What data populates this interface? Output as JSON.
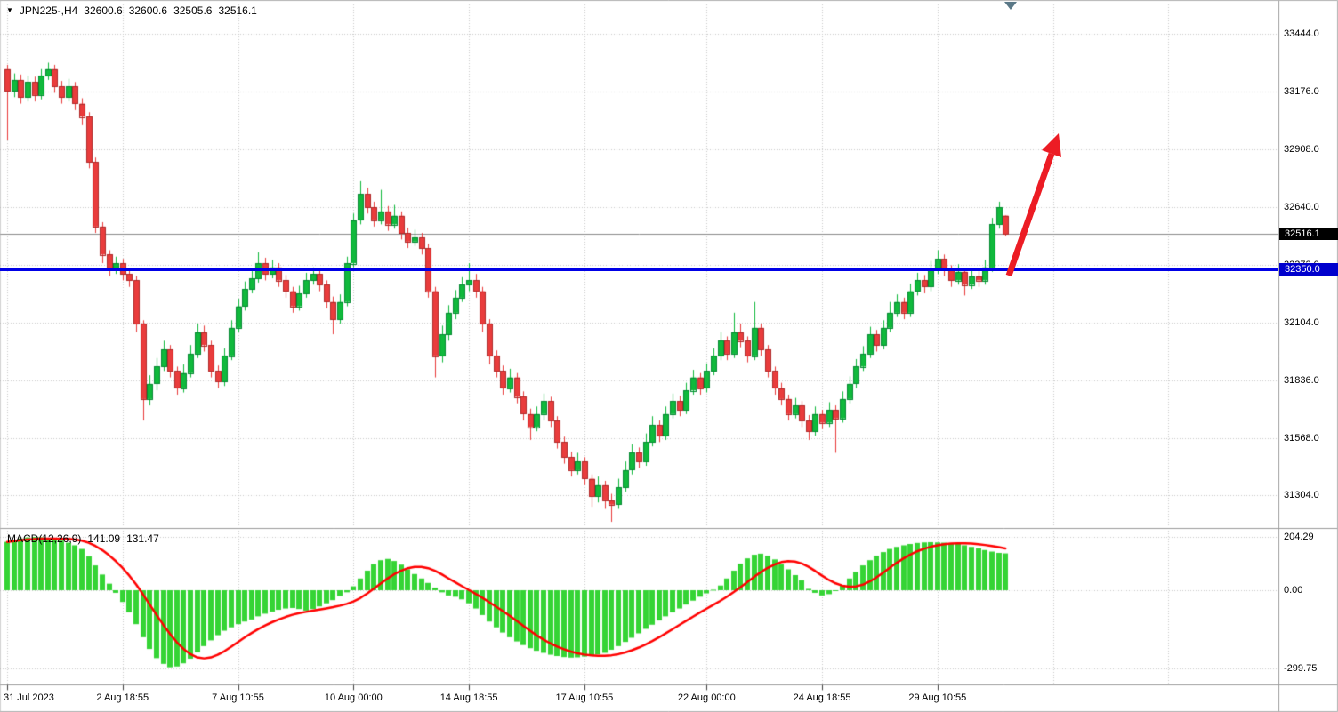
{
  "header": {
    "marker_icon": "▼",
    "title": "JPN225-,H4",
    "ohlc": {
      "open": "32600.6",
      "high": "32600.6",
      "low": "32505.6",
      "close": "32516.1"
    }
  },
  "indicator": {
    "label": "MACD(12,26,9)",
    "macd_value": "141.09",
    "signal_value": "131.47"
  },
  "price_tags": {
    "current": {
      "value": "32516.1",
      "price": 32516.1
    },
    "support": {
      "value": "32350.0",
      "price": 32350.0
    }
  },
  "annotations": {
    "support_line": {
      "price": 32350.0
    },
    "trend_arrow": {
      "direction": "up-right"
    }
  },
  "colors": {
    "background": "#FFFFFF",
    "candle_up": "#10B93C",
    "candle_up_border": "#068A33",
    "candle_down": "#E93C3C",
    "candle_down_border": "#B02A2A",
    "macd_histogram": "#35D435",
    "macd_signal": "#FF0000",
    "support_line": "#0000E6",
    "support_tag_bg": "#0000CD",
    "current_tag_bg": "#000000",
    "arrow": "#EC1C24",
    "grid": "#C9C9C9",
    "separator": "#9C9C9C",
    "current_price_line": "#8A8A8A",
    "text": "#000000"
  },
  "chart_data": {
    "type": "candlestick",
    "symbol": "JPN225-",
    "timeframe": "H4",
    "title": "JPN225-,H4 32600.6 32600.6 32505.6 32516.1",
    "grid": true,
    "last_ohlc": {
      "open": 32600.6,
      "high": 32600.6,
      "low": 32505.6,
      "close": 32516.1
    },
    "y_ticks": [
      {
        "label": "33444.0",
        "price": 33444.0
      },
      {
        "label": "33176.0",
        "price": 33176.0
      },
      {
        "label": "32908.0",
        "price": 32908.0
      },
      {
        "label": "32640.0",
        "price": 32640.0
      },
      {
        "label": "32372.0",
        "price": 32372.0
      },
      {
        "label": "32104.0",
        "price": 32104.0
      },
      {
        "label": "31836.0",
        "price": 31836.0
      },
      {
        "label": "31568.0",
        "price": 31568.0
      },
      {
        "label": "31304.0",
        "price": 31304.0
      }
    ],
    "x_ticks": [
      {
        "label": "31 Jul 2023",
        "bar": 0
      },
      {
        "label": "2 Aug 18:55",
        "bar": 17
      },
      {
        "label": "7 Aug 10:55",
        "bar": 34
      },
      {
        "label": "10 Aug 00:00",
        "bar": 51
      },
      {
        "label": "14 Aug 18:55",
        "bar": 68
      },
      {
        "label": "17 Aug 10:55",
        "bar": 85
      },
      {
        "label": "22 Aug 00:00",
        "bar": 103
      },
      {
        "label": "24 Aug 18:55",
        "bar": 120
      },
      {
        "label": "29 Aug 10:55",
        "bar": 137
      }
    ],
    "candles": [
      [
        33280,
        33300,
        32950,
        33180
      ],
      [
        33180,
        33260,
        33150,
        33230
      ],
      [
        33230,
        33255,
        33120,
        33150
      ],
      [
        33150,
        33250,
        33130,
        33220
      ],
      [
        33220,
        33245,
        33130,
        33160
      ],
      [
        33160,
        33280,
        33140,
        33250
      ],
      [
        33250,
        33310,
        33230,
        33280
      ],
      [
        33280,
        33300,
        33170,
        33200
      ],
      [
        33200,
        33225,
        33120,
        33150
      ],
      [
        33150,
        33235,
        33130,
        33200
      ],
      [
        33200,
        33220,
        33090,
        33120
      ],
      [
        33120,
        33145,
        33020,
        33060
      ],
      [
        33060,
        33080,
        32820,
        32850
      ],
      [
        32850,
        32870,
        32520,
        32550
      ],
      [
        32550,
        32570,
        32380,
        32420
      ],
      [
        32420,
        32440,
        32320,
        32350
      ],
      [
        32350,
        32410,
        32330,
        32380
      ],
      [
        32380,
        32400,
        32300,
        32330
      ],
      [
        32330,
        32355,
        32270,
        32300
      ],
      [
        32300,
        32320,
        32060,
        32100
      ],
      [
        32100,
        32115,
        31650,
        31750
      ],
      [
        31750,
        31860,
        31720,
        31820
      ],
      [
        31820,
        31940,
        31790,
        31900
      ],
      [
        31900,
        32020,
        31880,
        31980
      ],
      [
        31980,
        32000,
        31850,
        31880
      ],
      [
        31880,
        31900,
        31770,
        31800
      ],
      [
        31800,
        31910,
        31780,
        31870
      ],
      [
        31870,
        32000,
        31850,
        31960
      ],
      [
        31960,
        32100,
        31940,
        32060
      ],
      [
        32060,
        32090,
        31970,
        32000
      ],
      [
        32000,
        32020,
        31850,
        31880
      ],
      [
        31880,
        31905,
        31800,
        31830
      ],
      [
        31830,
        31985,
        31810,
        31950
      ],
      [
        31950,
        32115,
        31930,
        32080
      ],
      [
        32080,
        32215,
        32060,
        32180
      ],
      [
        32180,
        32295,
        32160,
        32260
      ],
      [
        32260,
        32345,
        32240,
        32310
      ],
      [
        32310,
        32430,
        32290,
        32380
      ],
      [
        32380,
        32405,
        32300,
        32330
      ],
      [
        32330,
        32395,
        32310,
        32360
      ],
      [
        32360,
        32380,
        32270,
        32300
      ],
      [
        32300,
        32325,
        32220,
        32250
      ],
      [
        32250,
        32270,
        32150,
        32180
      ],
      [
        32180,
        32275,
        32160,
        32240
      ],
      [
        32240,
        32335,
        32220,
        32300
      ],
      [
        32300,
        32360,
        32280,
        32330
      ],
      [
        32330,
        32350,
        32250,
        32280
      ],
      [
        32280,
        32300,
        32170,
        32200
      ],
      [
        32200,
        32225,
        32050,
        32120
      ],
      [
        32120,
        32235,
        32100,
        32200
      ],
      [
        32200,
        32410,
        32180,
        32380
      ],
      [
        32380,
        32610,
        32360,
        32580
      ],
      [
        32580,
        32760,
        32560,
        32700
      ],
      [
        32700,
        32730,
        32610,
        32640
      ],
      [
        32640,
        32665,
        32550,
        32580
      ],
      [
        32580,
        32720,
        32560,
        32620
      ],
      [
        32620,
        32645,
        32530,
        32560
      ],
      [
        32560,
        32650,
        32540,
        32600
      ],
      [
        32600,
        32620,
        32490,
        32520
      ],
      [
        32520,
        32545,
        32450,
        32480
      ],
      [
        32480,
        32535,
        32460,
        32500
      ],
      [
        32500,
        32520,
        32420,
        32450
      ],
      [
        32450,
        32470,
        32220,
        32250
      ],
      [
        32250,
        32270,
        31850,
        31950
      ],
      [
        31950,
        32090,
        31920,
        32050
      ],
      [
        32050,
        32185,
        32020,
        32150
      ],
      [
        32150,
        32255,
        32120,
        32220
      ],
      [
        32220,
        32315,
        32200,
        32280
      ],
      [
        32280,
        32380,
        32250,
        32300
      ],
      [
        32300,
        32330,
        32220,
        32250
      ],
      [
        32250,
        32270,
        32060,
        32100
      ],
      [
        32100,
        32120,
        31910,
        31950
      ],
      [
        31950,
        31975,
        31850,
        31880
      ],
      [
        31880,
        31905,
        31770,
        31800
      ],
      [
        31800,
        31890,
        31780,
        31850
      ],
      [
        31850,
        31870,
        31730,
        31760
      ],
      [
        31760,
        31785,
        31650,
        31680
      ],
      [
        31680,
        31705,
        31560,
        31620
      ],
      [
        31620,
        31715,
        31600,
        31680
      ],
      [
        31680,
        31775,
        31650,
        31740
      ],
      [
        31740,
        31760,
        31620,
        31650
      ],
      [
        31650,
        31670,
        31520,
        31550
      ],
      [
        31550,
        31575,
        31450,
        31480
      ],
      [
        31480,
        31505,
        31390,
        31420
      ],
      [
        31420,
        31500,
        31400,
        31460
      ],
      [
        31460,
        31480,
        31350,
        31380
      ],
      [
        31380,
        31400,
        31250,
        31300
      ],
      [
        31300,
        31390,
        31270,
        31350
      ],
      [
        31350,
        31370,
        31240,
        31280
      ],
      [
        31280,
        31310,
        31180,
        31260
      ],
      [
        31260,
        31380,
        31240,
        31340
      ],
      [
        31340,
        31460,
        31320,
        31420
      ],
      [
        31420,
        31540,
        31400,
        31500
      ],
      [
        31500,
        31525,
        31430,
        31460
      ],
      [
        31460,
        31590,
        31440,
        31550
      ],
      [
        31550,
        31670,
        31530,
        31630
      ],
      [
        31630,
        31650,
        31550,
        31580
      ],
      [
        31580,
        31715,
        31560,
        31680
      ],
      [
        31680,
        31775,
        31660,
        31740
      ],
      [
        31740,
        31765,
        31670,
        31700
      ],
      [
        31700,
        31825,
        31680,
        31790
      ],
      [
        31790,
        31885,
        31770,
        31850
      ],
      [
        31850,
        31870,
        31770,
        31800
      ],
      [
        31800,
        31915,
        31780,
        31880
      ],
      [
        31880,
        31985,
        31860,
        31950
      ],
      [
        31950,
        32060,
        31930,
        32020
      ],
      [
        32020,
        32040,
        31930,
        31960
      ],
      [
        31960,
        32150,
        31940,
        32060
      ],
      [
        32060,
        32100,
        31990,
        32020
      ],
      [
        32020,
        32040,
        31920,
        31950
      ],
      [
        31950,
        32200,
        31930,
        32080
      ],
      [
        32080,
        32100,
        31950,
        31980
      ],
      [
        31980,
        32000,
        31850,
        31880
      ],
      [
        31880,
        31900,
        31770,
        31800
      ],
      [
        31800,
        31825,
        31720,
        31750
      ],
      [
        31750,
        31770,
        31650,
        31680
      ],
      [
        31680,
        31755,
        31660,
        31720
      ],
      [
        31720,
        31740,
        31620,
        31650
      ],
      [
        31650,
        31675,
        31560,
        31600
      ],
      [
        31600,
        31715,
        31580,
        31680
      ],
      [
        31680,
        31700,
        31610,
        31640
      ],
      [
        31640,
        31735,
        31620,
        31700
      ],
      [
        31700,
        31720,
        31500,
        31660
      ],
      [
        31660,
        31785,
        31640,
        31750
      ],
      [
        31750,
        31855,
        31730,
        31820
      ],
      [
        31820,
        31935,
        31800,
        31900
      ],
      [
        31900,
        31995,
        31880,
        31960
      ],
      [
        31960,
        32085,
        31940,
        32050
      ],
      [
        32050,
        32070,
        31970,
        32000
      ],
      [
        32000,
        32115,
        31980,
        32080
      ],
      [
        32080,
        32200,
        32060,
        32150
      ],
      [
        32150,
        32235,
        32130,
        32200
      ],
      [
        32200,
        32220,
        32120,
        32150
      ],
      [
        32150,
        32285,
        32130,
        32250
      ],
      [
        32250,
        32335,
        32230,
        32300
      ],
      [
        32300,
        32325,
        32240,
        32270
      ],
      [
        32270,
        32390,
        32250,
        32350
      ],
      [
        32350,
        32440,
        32330,
        32400
      ],
      [
        32400,
        32420,
        32320,
        32350
      ],
      [
        32350,
        32370,
        32270,
        32300
      ],
      [
        32300,
        32375,
        32280,
        32340
      ],
      [
        32340,
        32355,
        32230,
        32280
      ],
      [
        32280,
        32355,
        32260,
        32320
      ],
      [
        32320,
        32345,
        32270,
        32300
      ],
      [
        32300,
        32395,
        32280,
        32360
      ],
      [
        32360,
        32590,
        32340,
        32560
      ],
      [
        32560,
        32665,
        32540,
        32640
      ],
      [
        32600.6,
        32600.6,
        32505.6,
        32516.1
      ]
    ],
    "macd": {
      "label": "MACD(12,26,9)",
      "params": [
        12,
        26,
        9
      ],
      "macd": 141.09,
      "signal": 131.47,
      "signal_period": 9,
      "y_ticks": [
        {
          "label": "204.29",
          "value": 204.29
        },
        {
          "label": "0.00",
          "value": 0
        },
        {
          "label": "-299.75",
          "value": -299.75
        }
      ],
      "histogram": [
        185,
        192,
        198,
        202,
        204,
        203,
        200,
        196,
        190,
        182,
        172,
        158,
        130,
        95,
        60,
        25,
        -10,
        -45,
        -85,
        -130,
        -180,
        -225,
        -260,
        -282,
        -295,
        -292,
        -280,
        -262,
        -238,
        -214,
        -192,
        -172,
        -155,
        -142,
        -130,
        -120,
        -112,
        -100,
        -90,
        -82,
        -75,
        -70,
        -68,
        -72,
        -78,
        -72,
        -62,
        -50,
        -38,
        -22,
        -8,
        15,
        45,
        75,
        100,
        115,
        120,
        112,
        98,
        80,
        62,
        45,
        28,
        10,
        -8,
        -20,
        -25,
        -35,
        -50,
        -70,
        -95,
        -120,
        -142,
        -162,
        -180,
        -196,
        -210,
        -222,
        -232,
        -240,
        -247,
        -252,
        -256,
        -258,
        -257,
        -254,
        -250,
        -246,
        -240,
        -228,
        -214,
        -198,
        -182,
        -165,
        -148,
        -132,
        -116,
        -100,
        -85,
        -70,
        -55,
        -40,
        -25,
        -12,
        2,
        18,
        45,
        75,
        102,
        122,
        136,
        140,
        132,
        118,
        100,
        80,
        58,
        38,
        5,
        -10,
        -20,
        -15,
        0,
        20,
        45,
        70,
        95,
        115,
        132,
        146,
        158,
        166,
        172,
        177,
        181,
        183,
        184,
        183,
        182,
        180,
        178,
        172,
        166,
        160,
        154,
        148,
        143,
        141.09
      ]
    }
  }
}
